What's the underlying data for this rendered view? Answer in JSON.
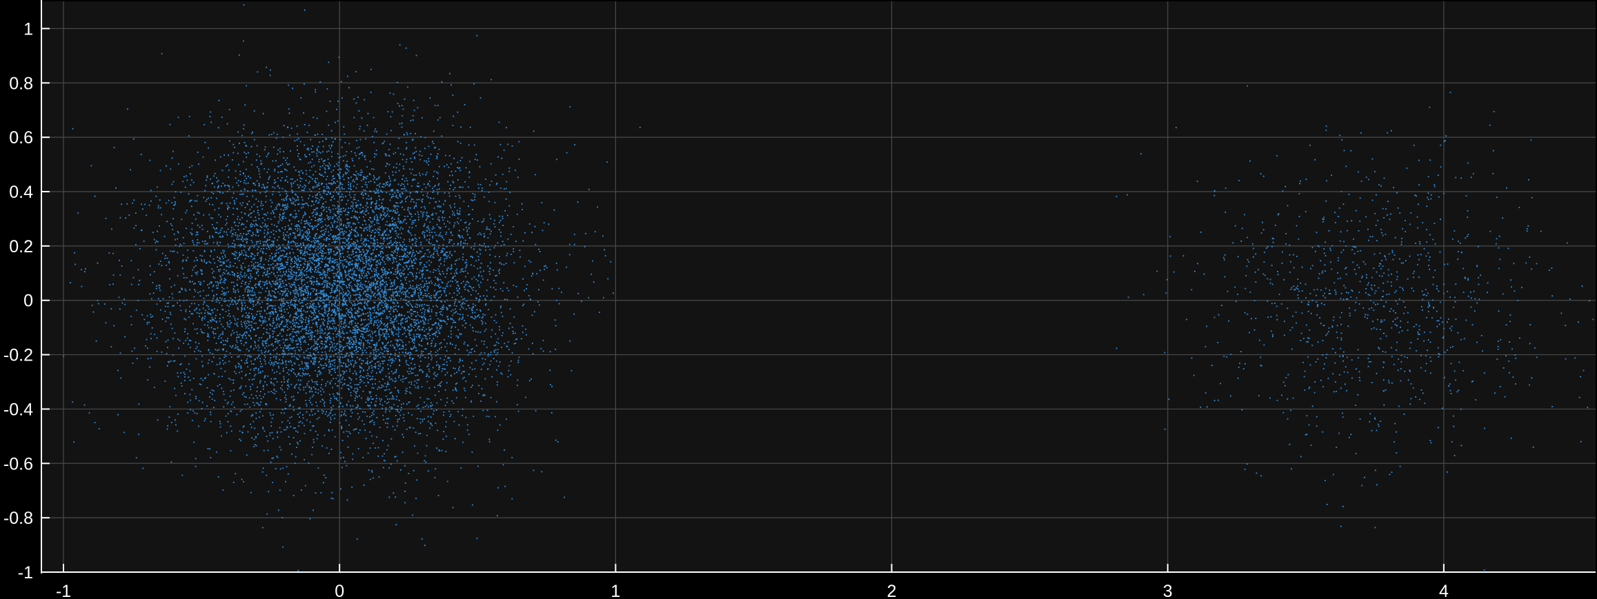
{
  "chart_data": {
    "type": "scatter",
    "title": "",
    "xlabel": "",
    "ylabel": "",
    "xlim": [
      -1.08,
      4.55
    ],
    "ylim": [
      -1.0,
      1.1
    ],
    "grid": true,
    "x_ticks": [
      -1,
      0,
      1,
      2,
      3,
      4
    ],
    "y_ticks": [
      -1,
      -0.8,
      -0.6,
      -0.4,
      -0.2,
      0,
      0.2,
      0.4,
      0.6,
      0.8,
      1
    ],
    "x_tick_labels": [
      "-1",
      "0",
      "1",
      "2",
      "3",
      "4"
    ],
    "y_tick_labels": [
      "-1",
      "-0.8",
      "-0.6",
      "-0.4",
      "-0.2",
      "0",
      "0.2",
      "0.4",
      "0.6",
      "0.8",
      "1"
    ],
    "series": [
      {
        "marker_color": "#2f8fe0",
        "clusters": [
          {
            "center": [
              0.0,
              0.05
            ],
            "spread": [
              0.3,
              0.27
            ],
            "approx_points": 9000
          },
          {
            "center": [
              3.75,
              0.0
            ],
            "spread": [
              0.3,
              0.27
            ],
            "approx_points": 1000
          }
        ]
      }
    ],
    "background_color": "#131313",
    "grid_color": "#4a4a4a",
    "axis_color": "#ffffff"
  }
}
